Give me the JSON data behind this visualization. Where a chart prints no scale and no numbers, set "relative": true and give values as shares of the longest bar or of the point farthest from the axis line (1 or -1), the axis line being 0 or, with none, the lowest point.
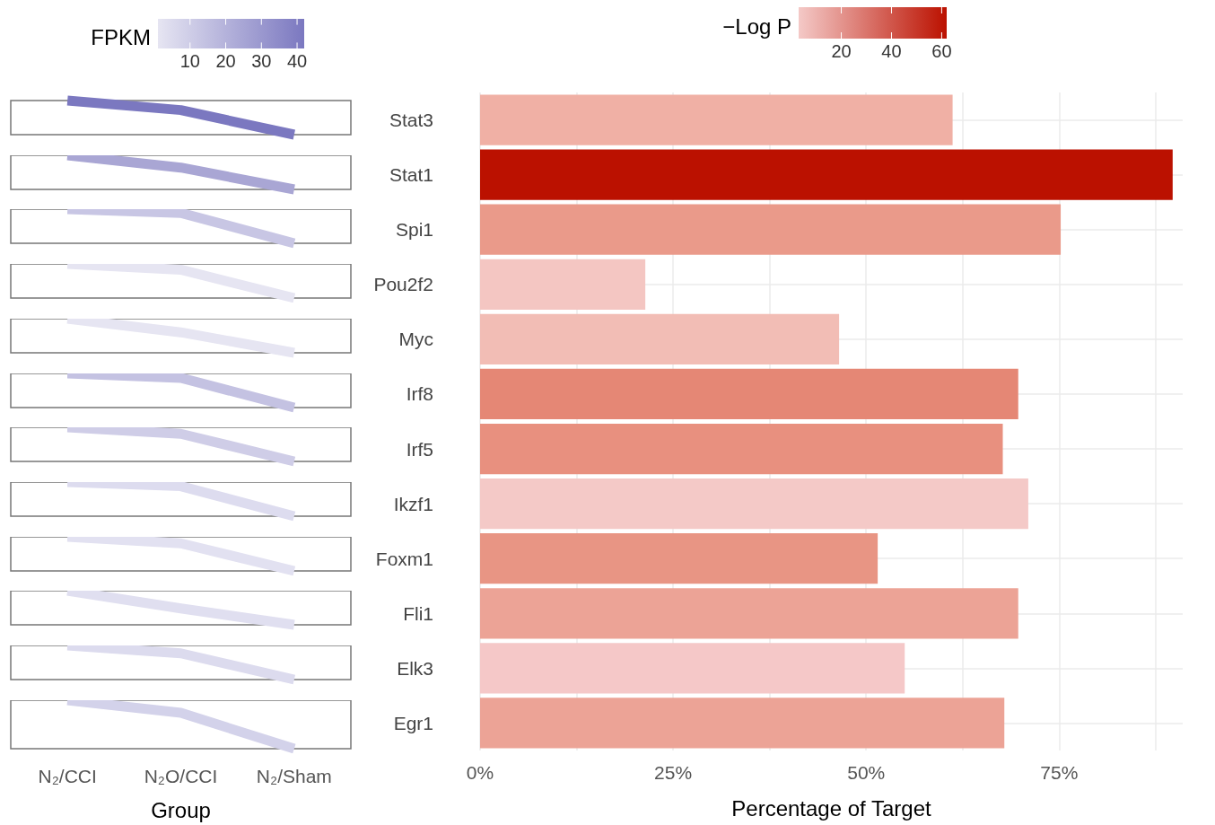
{
  "chart_data": [
    {
      "type": "line",
      "relative": true,
      "categories": [
        null,
        null,
        null
      ],
      "clabel": "FPKM",
      "clim": [
        1,
        42
      ],
      "cticks": [
        10,
        20,
        30,
        40
      ],
      "series": [
        {
          "color": "#7b78c0",
          "values": [
            1,
            0.72,
            0
          ]
        }
      ]
    },
    {
      "type": "line",
      "relative": true,
      "categories": [
        null,
        null,
        null
      ],
      "series": [
        {
          "color": "#a9a6d4",
          "values": [
            1,
            0.64,
            0
          ]
        }
      ]
    },
    {
      "type": "line",
      "relative": true,
      "categories": [
        null,
        null,
        null
      ],
      "series": [
        {
          "color": "#c8c6e4",
          "values": [
            1,
            0.89,
            0
          ]
        }
      ]
    },
    {
      "type": "line",
      "relative": true,
      "categories": [
        null,
        null,
        null
      ],
      "series": [
        {
          "color": "#e6e5f2",
          "values": [
            1,
            0.83,
            0
          ]
        }
      ]
    },
    {
      "type": "line",
      "relative": true,
      "categories": [
        null,
        null,
        null
      ],
      "series": [
        {
          "color": "#e6e5f2",
          "values": [
            1,
            0.6,
            0
          ]
        }
      ]
    },
    {
      "type": "line",
      "relative": true,
      "categories": [
        null,
        null,
        null
      ],
      "series": [
        {
          "color": "#c4c2e2",
          "values": [
            1,
            0.87,
            0
          ]
        }
      ]
    },
    {
      "type": "line",
      "relative": true,
      "categories": [
        null,
        null,
        null
      ],
      "series": [
        {
          "color": "#cfcde7",
          "values": [
            1,
            0.81,
            0
          ]
        }
      ]
    },
    {
      "type": "line",
      "relative": true,
      "categories": [
        null,
        null,
        null
      ],
      "series": [
        {
          "color": "#dddcef",
          "values": [
            1,
            0.88,
            0
          ]
        }
      ]
    },
    {
      "type": "line",
      "relative": true,
      "categories": [
        null,
        null,
        null
      ],
      "series": [
        {
          "color": "#e2e1f1",
          "values": [
            1,
            0.81,
            0
          ]
        }
      ]
    },
    {
      "type": "line",
      "relative": true,
      "categories": [
        null,
        null,
        null
      ],
      "series": [
        {
          "color": "#e0dff0",
          "values": [
            1,
            0.48,
            0
          ]
        }
      ]
    },
    {
      "type": "line",
      "relative": true,
      "categories": [
        null,
        null,
        null
      ],
      "series": [
        {
          "color": "#dcdbee",
          "values": [
            1,
            0.77,
            0
          ]
        }
      ]
    },
    {
      "type": "line",
      "relative": true,
      "categories": [
        "N₂/CCI",
        "N₂O/CCI",
        "N₂/Sham"
      ],
      "tick_labels": "x",
      "xlabel": "Group",
      "series": [
        {
          "color": "#d3d2ea",
          "values": [
            1,
            0.74,
            0
          ]
        }
      ]
    },
    {
      "type": "bar",
      "orientation": "horizontal",
      "xlabel": "Percentage of Target",
      "clabel": "−Log P",
      "clim": [
        3,
        62
      ],
      "cticks": [
        20,
        40,
        60
      ],
      "grid": true,
      "categories": [
        "Stat3",
        "Stat1",
        "Spi1",
        "Pou2f2",
        "Myc",
        "Irf8",
        "Irf5",
        "Ikzf1",
        "Foxm1",
        "Fli1",
        "Elk3",
        "Egr1"
      ],
      "values": [
        61.2,
        89.7,
        75.2,
        21.4,
        46.5,
        69.7,
        67.7,
        71.0,
        51.5,
        69.7,
        55.0,
        67.9
      ],
      "colors": [
        "#f0b0a5",
        "#bb1100",
        "#ea9a8a",
        "#f4c6c2",
        "#f2bdb5",
        "#e58775",
        "#e8907f",
        "#f4c9c7",
        "#e89584",
        "#eca396",
        "#f5c8c8",
        "#eca396"
      ],
      "xlim": [
        0,
        91
      ],
      "xticks": [
        {
          "value": 0,
          "label": "0%"
        },
        {
          "value": 12.5,
          "label": null
        },
        {
          "value": 25,
          "label": "25%"
        },
        {
          "value": 37.5,
          "label": null
        },
        {
          "value": 50,
          "label": "50%"
        },
        {
          "value": 62.5,
          "label": null
        },
        {
          "value": 75,
          "label": "75%"
        },
        {
          "value": 87.5,
          "label": null
        }
      ]
    }
  ]
}
